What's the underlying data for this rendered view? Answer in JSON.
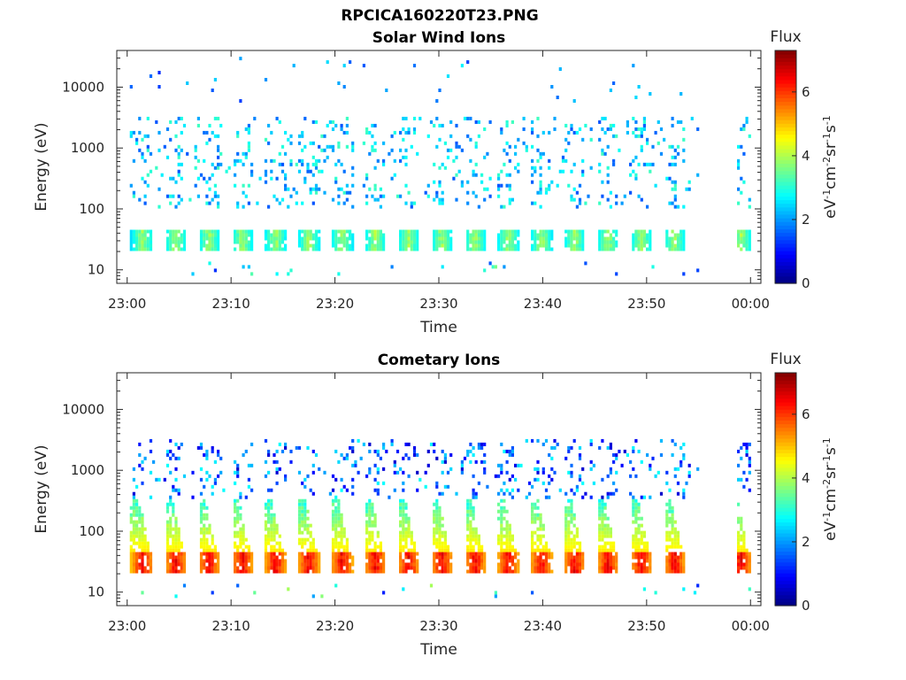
{
  "figure": {
    "title": "RPCICA160220T23.PNG"
  },
  "chart_data": [
    {
      "type": "heatmap",
      "title": "Solar Wind Ions",
      "xlabel": "Time",
      "ylabel": "Energy (eV)",
      "yscale": "log",
      "ylim": [
        6,
        40000
      ],
      "xlim": [
        "23:00",
        "00:01"
      ],
      "x_ticks": [
        "23:00",
        "23:10",
        "23:20",
        "23:30",
        "23:40",
        "23:50",
        "00:00"
      ],
      "y_ticks": [
        "10",
        "100",
        "1000",
        "10000"
      ],
      "colorbar": {
        "label": "Flux",
        "unit": "eV-1cm-2sr-1s-1",
        "range": [
          0,
          7.3
        ],
        "ticks": [
          "0",
          "2",
          "4",
          "6"
        ],
        "colormap": "jet"
      },
      "features": {
        "pulse_period_min": 3.2,
        "main_band_eV": [
          18,
          45
        ],
        "main_band_flux": [
          2.5,
          4.2
        ],
        "upper_band_eV": [
          100,
          3000
        ],
        "upper_band_flux": [
          1.5,
          3.2
        ],
        "sparse_high_eV": [
          5000,
          30000
        ],
        "data_end": "23:55",
        "second_burst": "23:59"
      }
    },
    {
      "type": "heatmap",
      "title": "Cometary Ions",
      "xlabel": "Time",
      "ylabel": "Energy (eV)",
      "yscale": "log",
      "ylim": [
        6,
        40000
      ],
      "xlim": [
        "23:00",
        "00:01"
      ],
      "x_ticks": [
        "23:00",
        "23:10",
        "23:20",
        "23:30",
        "23:40",
        "23:50",
        "00:00"
      ],
      "y_ticks": [
        "10",
        "100",
        "1000",
        "10000"
      ],
      "colorbar": {
        "label": "Flux",
        "unit": "eV-1cm-2sr-1s-1",
        "range": [
          0,
          7.3
        ],
        "ticks": [
          "0",
          "2",
          "4",
          "6"
        ],
        "colormap": "jet"
      },
      "features": {
        "pulse_period_min": 3.2,
        "main_band_eV": [
          18,
          40
        ],
        "main_band_flux": [
          5.0,
          6.8
        ],
        "tail_eV": [
          40,
          300
        ],
        "tail_flux": [
          3.0,
          4.8
        ],
        "upper_band_eV": [
          150,
          3000
        ],
        "upper_band_flux": [
          0.5,
          2.8
        ],
        "data_end": "23:55",
        "second_burst": "23:59"
      }
    }
  ]
}
